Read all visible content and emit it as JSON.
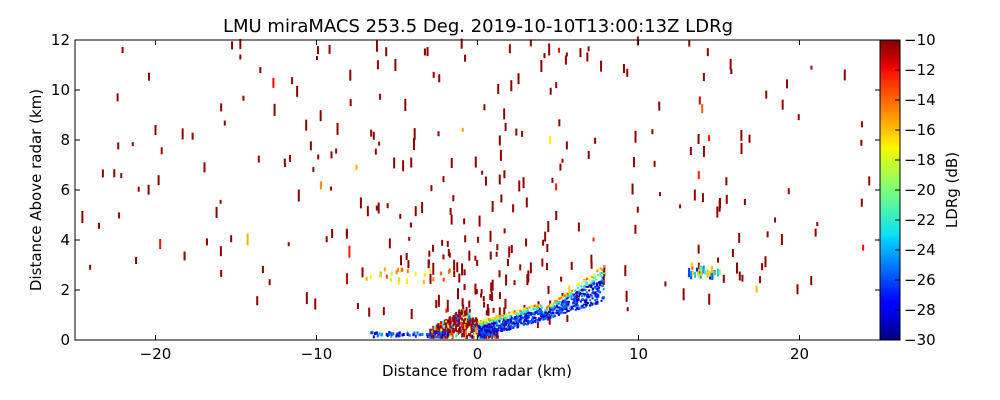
{
  "chart_data": {
    "type": "heatmap",
    "title": "LMU miraMACS 253.5 Deg. 2019-10-10T13:00:13Z  LDRg",
    "xlabel": "Distance from radar (km)",
    "ylabel": "Distance Above radar  (km)",
    "xlim": [
      -25,
      25
    ],
    "ylim": [
      0,
      12
    ],
    "xticks": [
      -20,
      -10,
      0,
      10,
      20
    ],
    "xtick_labels": [
      "−20",
      "−10",
      "0",
      "10",
      "20"
    ],
    "yticks": [
      0,
      2,
      4,
      6,
      8,
      10,
      12
    ],
    "ytick_labels": [
      "0",
      "2",
      "4",
      "6",
      "8",
      "10",
      "12"
    ],
    "grid": false,
    "colorbar": {
      "label": "LDRg (dB)",
      "colormap": "jet",
      "range": [
        -30,
        -10
      ],
      "ticks": [
        -10,
        -12,
        -14,
        -16,
        -18,
        -20,
        -22,
        -24,
        -26,
        -28,
        -30
      ],
      "tick_labels": [
        "−10",
        "−12",
        "−14",
        "−16",
        "−18",
        "−20",
        "−22",
        "−24",
        "−26",
        "−28",
        "−30"
      ],
      "placement": "right"
    },
    "features": [
      {
        "name": "sparse-noise-echoes",
        "description": "scattered short vertical streaks mostly near -10 dB (dark red) across the whole RHI scan from x=-24 to 23 km, heights up to 12 km"
      },
      {
        "name": "low-level-cloud-layer",
        "description": "dense echo region near surface from about -2 to 8 km, low LDR values (-30 to -24 dB) with melting-layer bright band edge around -20 to -16 dB",
        "x_range_km": [
          -2,
          8
        ],
        "y_range_km": [
          0,
          3
        ]
      },
      {
        "name": "surface-clutter",
        "description": "high LDR (-12 to -10 dB) red/dark red clutter near x=-3 to 1 km close to ground",
        "x_range_km": [
          -3,
          1
        ],
        "y_range_km": [
          0,
          1.2
        ]
      },
      {
        "name": "elevated-patch",
        "description": "small mixed LDR patch near x=13 to 15 km at about 2.5-3 km height",
        "x_range_km": [
          13,
          15
        ],
        "y_range_km": [
          2.4,
          3
        ]
      }
    ]
  }
}
